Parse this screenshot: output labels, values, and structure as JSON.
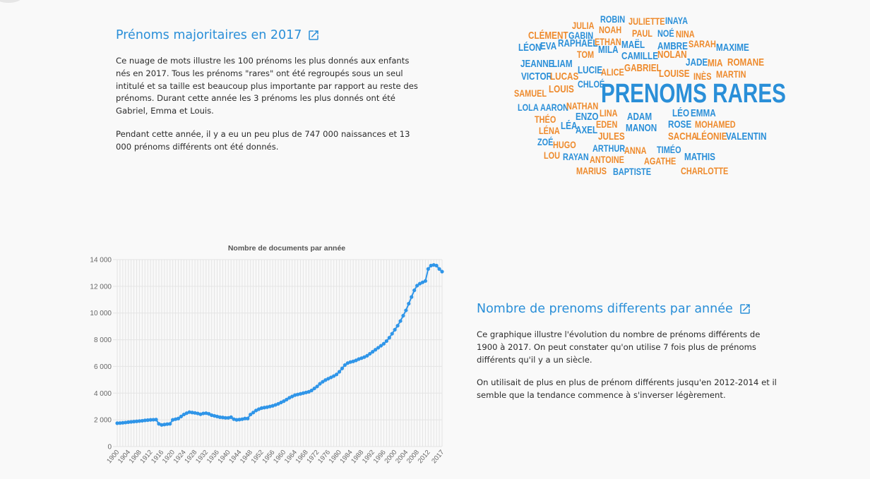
{
  "section1": {
    "title": "Prénoms majoritaires en 2017",
    "paragraph1": "Ce nuage de mots illustre les 100 prénoms les plus donnés aux enfants nés en 2017. Tous les prénoms \"rares\" ont été regroupés sous un seul intitulé et sa taille est beaucoup plus importante par rapport au reste des prénoms. Durant cette année les 3 prénoms les plus donnés ont été Gabriel, Emma et Louis.",
    "paragraph2": "Pendant cette année, il y a eu un peu plus de 747 000 naissances et 13 000 prénoms différents ont été donnés."
  },
  "section2": {
    "title": "Nombre de prenoms differents par année",
    "paragraph1": "Ce graphique illustre l'évolution du nombre de prénoms différents de 1900 à 2017. On peut constater qu'on utilise 7 fois plus de prénoms différents qu'il y a un siècle.",
    "paragraph2": "On utilisait de plus en plus de prénom différents jusqu'en 2012-2014 et il semble que la tendance commence à s'inverser légèrement."
  },
  "icons": {
    "external_link": "external-link-icon"
  },
  "colors": {
    "blue": "#2a8fd8",
    "orange": "#ee8a2c",
    "line": "#2f95e8",
    "background": "#f9f9f9"
  },
  "wordcloud": {
    "words": [
      {
        "text": "ROBIN",
        "color": "blue"
      },
      {
        "text": "JULIA",
        "color": "orange"
      },
      {
        "text": "JULIETTE",
        "color": "orange"
      },
      {
        "text": "INAYA",
        "color": "blue"
      },
      {
        "text": "NOAH",
        "color": "orange"
      },
      {
        "text": "CLÉMENT",
        "color": "orange"
      },
      {
        "text": "GABIN",
        "color": "blue"
      },
      {
        "text": "PAUL",
        "color": "orange"
      },
      {
        "text": "NOÉ",
        "color": "blue"
      },
      {
        "text": "NINA",
        "color": "orange"
      },
      {
        "text": "ETHAN",
        "color": "orange"
      },
      {
        "text": "LÉON",
        "color": "blue"
      },
      {
        "text": "EVA",
        "color": "blue"
      },
      {
        "text": "RAPHAËL",
        "color": "blue"
      },
      {
        "text": "MILA",
        "color": "blue"
      },
      {
        "text": "MAËL",
        "color": "blue"
      },
      {
        "text": "AMBRE",
        "color": "blue"
      },
      {
        "text": "SARAH",
        "color": "orange"
      },
      {
        "text": "MAXIME",
        "color": "blue"
      },
      {
        "text": "TOM",
        "color": "orange"
      },
      {
        "text": "CAMILLE",
        "color": "blue"
      },
      {
        "text": "NOLAN",
        "color": "orange"
      },
      {
        "text": "JEANNE",
        "color": "blue"
      },
      {
        "text": "LIAM",
        "color": "blue"
      },
      {
        "text": "JADE",
        "color": "blue"
      },
      {
        "text": "MIA",
        "color": "orange"
      },
      {
        "text": "ROMANE",
        "color": "orange"
      },
      {
        "text": "GABRIEL",
        "color": "orange"
      },
      {
        "text": "LUCIE",
        "color": "blue"
      },
      {
        "text": "ALICE",
        "color": "orange"
      },
      {
        "text": "VICTOR",
        "color": "blue"
      },
      {
        "text": "LUCAS",
        "color": "orange"
      },
      {
        "text": "LOUISE",
        "color": "orange"
      },
      {
        "text": "INÈS",
        "color": "orange"
      },
      {
        "text": "MARTIN",
        "color": "orange"
      },
      {
        "text": "CHLOÉ",
        "color": "blue"
      },
      {
        "text": "LOUIS",
        "color": "orange"
      },
      {
        "text": "SAMUEL",
        "color": "orange"
      },
      {
        "text": "PRENOMS RARES",
        "color": "blue"
      },
      {
        "text": "LOLA",
        "color": "blue"
      },
      {
        "text": "AARON",
        "color": "blue"
      },
      {
        "text": "NATHAN",
        "color": "orange"
      },
      {
        "text": "LINA",
        "color": "orange"
      },
      {
        "text": "LÉO",
        "color": "blue"
      },
      {
        "text": "EMMA",
        "color": "blue"
      },
      {
        "text": "ADAM",
        "color": "blue"
      },
      {
        "text": "THÉO",
        "color": "orange"
      },
      {
        "text": "ENZO",
        "color": "blue"
      },
      {
        "text": "LÉA",
        "color": "blue"
      },
      {
        "text": "EDEN",
        "color": "orange"
      },
      {
        "text": "ROSE",
        "color": "blue"
      },
      {
        "text": "MOHAMED",
        "color": "orange"
      },
      {
        "text": "LÉNA",
        "color": "orange"
      },
      {
        "text": "AXEL",
        "color": "blue"
      },
      {
        "text": "MANON",
        "color": "blue"
      },
      {
        "text": "JULES",
        "color": "orange"
      },
      {
        "text": "SACHA",
        "color": "orange"
      },
      {
        "text": "LÉONIE",
        "color": "orange"
      },
      {
        "text": "VALENTIN",
        "color": "blue"
      },
      {
        "text": "ZOÉ",
        "color": "blue"
      },
      {
        "text": "HUGO",
        "color": "orange"
      },
      {
        "text": "ARTHUR",
        "color": "blue"
      },
      {
        "text": "ANNA",
        "color": "orange"
      },
      {
        "text": "TIMÉO",
        "color": "blue"
      },
      {
        "text": "LOU",
        "color": "orange"
      },
      {
        "text": "RAYAN",
        "color": "blue"
      },
      {
        "text": "ANTOINE",
        "color": "orange"
      },
      {
        "text": "AGATHE",
        "color": "orange"
      },
      {
        "text": "MATHIS",
        "color": "blue"
      },
      {
        "text": "MARIUS",
        "color": "orange"
      },
      {
        "text": "BAPTISTE",
        "color": "blue"
      },
      {
        "text": "CHARLOTTE",
        "color": "orange"
      }
    ]
  },
  "chart_data": {
    "type": "line",
    "title": "Nombre de documents par année",
    "xlabel": "",
    "ylabel": "",
    "ylim": [
      0,
      14000
    ],
    "yticks": [
      "0",
      "2 000",
      "4 000",
      "6 000",
      "8 000",
      "10 000",
      "12 000",
      "14 000"
    ],
    "xticks": [
      "1900",
      "1904",
      "1908",
      "1912",
      "1916",
      "1920",
      "1924",
      "1928",
      "1932",
      "1936",
      "1940",
      "1944",
      "1948",
      "1952",
      "1956",
      "1960",
      "1964",
      "1968",
      "1972",
      "1976",
      "1980",
      "1984",
      "1988",
      "1992",
      "1996",
      "2000",
      "2004",
      "2008",
      "2012",
      "2017"
    ],
    "grid": true,
    "legend": "none",
    "series": [
      {
        "x": [
          1900,
          1901,
          1902,
          1903,
          1904,
          1905,
          1906,
          1907,
          1908,
          1909,
          1910,
          1911,
          1912,
          1913,
          1914,
          1915,
          1916,
          1917,
          1918,
          1919,
          1920,
          1921,
          1922,
          1923,
          1924,
          1925,
          1926,
          1927,
          1928,
          1929,
          1930,
          1931,
          1932,
          1933,
          1934,
          1935,
          1936,
          1937,
          1938,
          1939,
          1940,
          1941,
          1942,
          1943,
          1944,
          1945,
          1946,
          1947,
          1948,
          1949,
          1950,
          1951,
          1952,
          1953,
          1954,
          1955,
          1956,
          1957,
          1958,
          1959,
          1960,
          1961,
          1962,
          1963,
          1964,
          1965,
          1966,
          1967,
          1968,
          1969,
          1970,
          1971,
          1972,
          1973,
          1974,
          1975,
          1976,
          1977,
          1978,
          1979,
          1980,
          1981,
          1982,
          1983,
          1984,
          1985,
          1986,
          1987,
          1988,
          1989,
          1990,
          1991,
          1992,
          1993,
          1994,
          1995,
          1996,
          1997,
          1998,
          1999,
          2000,
          2001,
          2002,
          2003,
          2004,
          2005,
          2006,
          2007,
          2008,
          2009,
          2010,
          2011,
          2012,
          2013,
          2014,
          2015,
          2016,
          2017
        ],
        "y": [
          1750,
          1760,
          1780,
          1800,
          1830,
          1850,
          1870,
          1890,
          1910,
          1930,
          1960,
          1980,
          2000,
          2010,
          2020,
          1700,
          1620,
          1650,
          1680,
          1700,
          2000,
          2050,
          2100,
          2250,
          2400,
          2500,
          2580,
          2550,
          2520,
          2480,
          2420,
          2480,
          2500,
          2450,
          2350,
          2300,
          2250,
          2200,
          2180,
          2150,
          2150,
          2200,
          2050,
          2000,
          2020,
          2050,
          2100,
          2100,
          2400,
          2550,
          2700,
          2800,
          2880,
          2920,
          2950,
          3000,
          3050,
          3120,
          3200,
          3300,
          3400,
          3520,
          3650,
          3750,
          3850,
          3900,
          3950,
          4000,
          4050,
          4100,
          4200,
          4350,
          4500,
          4700,
          4850,
          4980,
          5080,
          5180,
          5280,
          5400,
          5600,
          5850,
          6100,
          6250,
          6330,
          6380,
          6450,
          6550,
          6620,
          6700,
          6800,
          6950,
          7100,
          7250,
          7400,
          7550,
          7700,
          7900,
          8150,
          8450,
          8750,
          9050,
          9400,
          9800,
          10200,
          10700,
          11200,
          11700,
          12050,
          12200,
          12300,
          12400,
          13300,
          13550,
          13600,
          13550,
          13300,
          13100
        ]
      }
    ]
  }
}
